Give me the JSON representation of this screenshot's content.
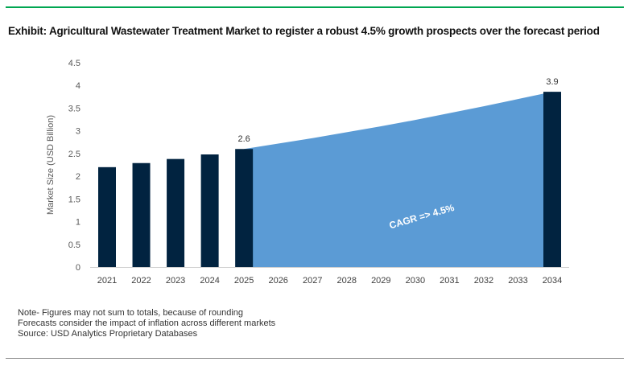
{
  "title": "Exhibit: Agricultural Wastewater Treatment Market to register a robust 4.5% growth prospects over the forecast period",
  "notes": [
    "Note- Figures may not sum to totals, because of rounding",
    "Forecasts consider the impact of inflation across different markets",
    "Source: USD Analytics Proprietary Databases"
  ],
  "colors": {
    "bar": "#012340",
    "area": "#5b9bd5",
    "accent_line": "#00a651"
  },
  "chart_data": {
    "type": "bar",
    "title": "",
    "xlabel": "",
    "ylabel": "Market Size (USD Billion)",
    "ylim": [
      0,
      4.5
    ],
    "yticks": [
      "0",
      "0.5",
      "1",
      "1.5",
      "2",
      "2.5",
      "3",
      "3.5",
      "4",
      "4.5"
    ],
    "grid": false,
    "categories": [
      "2021",
      "2022",
      "2023",
      "2024",
      "2025",
      "2026",
      "2027",
      "2028",
      "2029",
      "2030",
      "2031",
      "2032",
      "2033",
      "2034"
    ],
    "bars": [
      2.2,
      2.29,
      2.38,
      2.48,
      2.6,
      null,
      null,
      null,
      null,
      null,
      null,
      null,
      null,
      3.86
    ],
    "area": [
      null,
      null,
      null,
      null,
      2.6,
      2.72,
      2.84,
      2.97,
      3.1,
      3.24,
      3.39,
      3.54,
      3.7,
      3.86
    ],
    "data_labels": [
      {
        "category": "2025",
        "text": "2.6"
      },
      {
        "category": "2034",
        "text": "3.9"
      }
    ],
    "annotation": "CAGR => 4.5%"
  }
}
